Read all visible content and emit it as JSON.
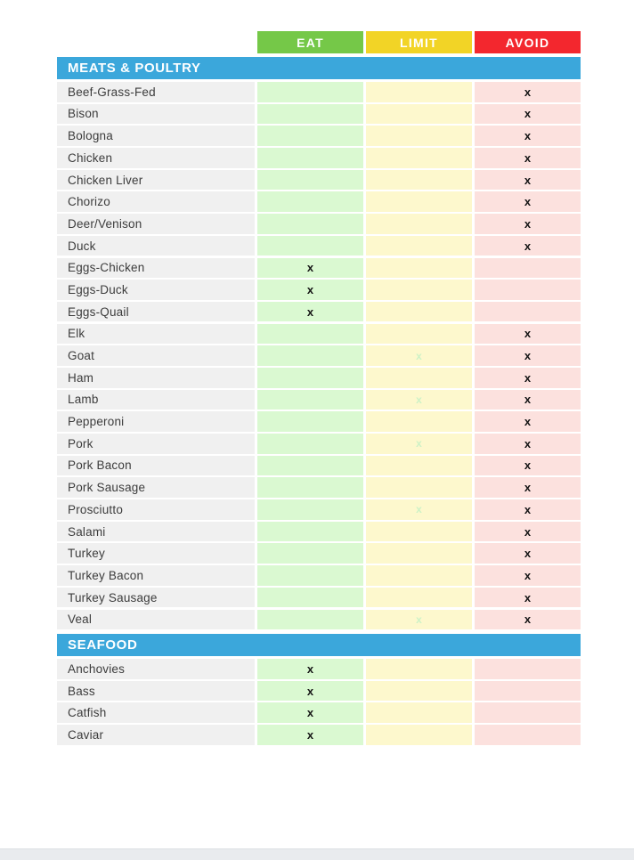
{
  "colors": {
    "eat_header": "#75c848",
    "limit_header": "#f2d426",
    "avoid_header": "#f3272e",
    "section_bg": "#3ba7db",
    "name_bg": "#f0f0f0",
    "eat_bg": "#daf9d1",
    "limit_bg": "#fdf8cd",
    "avoid_bg": "#fce1de",
    "mark_color": "#161616",
    "faint_mark_color": "#cdf2c6",
    "page_gap": "#e9ebee"
  },
  "columns": {
    "headers": [
      {
        "label": "EAT"
      },
      {
        "label": "LIMIT"
      },
      {
        "label": "AVOID"
      }
    ]
  },
  "sections": [
    {
      "title": "MEATS & POULTRY",
      "rows": [
        {
          "name": "Beef-Grass-Fed",
          "eat": "",
          "limit": "",
          "avoid": "x"
        },
        {
          "name": "Bison",
          "eat": "",
          "limit": "",
          "avoid": "x"
        },
        {
          "name": "Bologna",
          "eat": "",
          "limit": "",
          "avoid": "x"
        },
        {
          "name": "Chicken",
          "eat": "",
          "limit": "",
          "avoid": "x"
        },
        {
          "name": "Chicken Liver",
          "eat": "",
          "limit": "",
          "avoid": "x"
        },
        {
          "name": "Chorizo",
          "eat": "",
          "limit": "",
          "avoid": "x"
        },
        {
          "name": "Deer/Venison",
          "eat": "",
          "limit": "",
          "avoid": "x"
        },
        {
          "name": "Duck",
          "eat": "",
          "limit": "",
          "avoid": "x"
        },
        {
          "name": "Eggs-Chicken",
          "eat": "x",
          "limit": "",
          "avoid": ""
        },
        {
          "name": "Eggs-Duck",
          "eat": "x",
          "limit": "",
          "avoid": ""
        },
        {
          "name": "Eggs-Quail",
          "eat": "x",
          "limit": "",
          "avoid": ""
        },
        {
          "name": "Elk",
          "eat": "",
          "limit": "",
          "avoid": "x"
        },
        {
          "name": "Goat",
          "eat": "",
          "limit": "x-faint",
          "avoid": "x"
        },
        {
          "name": "Ham",
          "eat": "",
          "limit": "",
          "avoid": "x"
        },
        {
          "name": "Lamb",
          "eat": "",
          "limit": "x-faint",
          "avoid": "x"
        },
        {
          "name": "Pepperoni",
          "eat": "",
          "limit": "",
          "avoid": "x"
        },
        {
          "name": "Pork",
          "eat": "",
          "limit": "x-faint",
          "avoid": "x"
        },
        {
          "name": "Pork Bacon",
          "eat": "",
          "limit": "",
          "avoid": "x"
        },
        {
          "name": "Pork Sausage",
          "eat": "",
          "limit": "",
          "avoid": "x"
        },
        {
          "name": "Prosciutto",
          "eat": "",
          "limit": "x-faint",
          "avoid": "x"
        },
        {
          "name": "Salami",
          "eat": "",
          "limit": "",
          "avoid": "x"
        },
        {
          "name": "Turkey",
          "eat": "",
          "limit": "",
          "avoid": "x"
        },
        {
          "name": "Turkey Bacon",
          "eat": "",
          "limit": "",
          "avoid": "x"
        },
        {
          "name": "Turkey Sausage",
          "eat": "",
          "limit": "",
          "avoid": "x"
        },
        {
          "name": "Veal",
          "eat": "",
          "limit": "x-faint",
          "avoid": "x"
        }
      ]
    },
    {
      "title": "SEAFOOD",
      "rows": [
        {
          "name": "Anchovies",
          "eat": "x",
          "limit": "",
          "avoid": ""
        },
        {
          "name": "Bass",
          "eat": "x",
          "limit": "",
          "avoid": ""
        },
        {
          "name": "Catfish",
          "eat": "x",
          "limit": "",
          "avoid": ""
        },
        {
          "name": "Caviar",
          "eat": "x",
          "limit": "",
          "avoid": ""
        }
      ]
    }
  ],
  "mark_glyph": "x"
}
